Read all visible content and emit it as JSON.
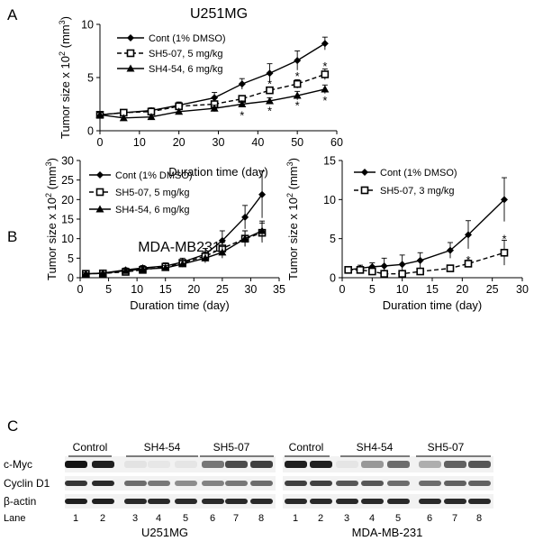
{
  "panels": {
    "a": "A",
    "b": "B",
    "c": "C"
  },
  "chart_data": [
    {
      "id": "chartA",
      "type": "line",
      "title": "U251MG",
      "xlabel": "Duration time (day)",
      "ylabel": "Tumor size x 10² (mm³)",
      "xlim": [
        0,
        60
      ],
      "ylim": [
        0,
        10
      ],
      "xticks": [
        0,
        10,
        20,
        30,
        40,
        50,
        60
      ],
      "yticks": [
        0,
        5,
        10
      ],
      "legend_position": "top-left",
      "series": [
        {
          "name": "Cont (1% DMSO)",
          "marker": "diamond",
          "dash": false,
          "x": [
            0,
            6,
            13,
            20,
            29,
            36,
            43,
            50,
            57
          ],
          "y": [
            1.5,
            1.7,
            1.9,
            2.4,
            3.1,
            4.4,
            5.4,
            6.6,
            8.2
          ],
          "err": [
            0.2,
            0.2,
            0.25,
            0.3,
            0.5,
            0.5,
            0.9,
            0.9,
            0.6
          ]
        },
        {
          "name": "SH5-07, 5 mg/kg",
          "marker": "square-open",
          "dash": true,
          "x": [
            0,
            6,
            13,
            20,
            29,
            36,
            43,
            50,
            57
          ],
          "y": [
            1.5,
            1.7,
            1.8,
            2.3,
            2.5,
            3.0,
            3.8,
            4.4,
            5.3
          ],
          "err": [
            0.2,
            0.2,
            0.2,
            0.25,
            0.3,
            0.3,
            0.3,
            0.4,
            0.5
          ]
        },
        {
          "name": "SH4-54, 6 mg/kg",
          "marker": "triangle",
          "dash": false,
          "x": [
            0,
            6,
            13,
            20,
            29,
            36,
            43,
            50,
            57
          ],
          "y": [
            1.5,
            1.2,
            1.3,
            1.8,
            2.1,
            2.5,
            2.8,
            3.3,
            3.9
          ],
          "err": [
            0.2,
            0.2,
            0.2,
            0.2,
            0.3,
            0.3,
            0.3,
            0.4,
            0.4
          ]
        }
      ],
      "annotations": [
        {
          "text": "*",
          "x": 36,
          "y": 1.5
        },
        {
          "text": "*",
          "x": 43,
          "y": 1.9
        },
        {
          "text": "*",
          "x": 43,
          "y": 4.45
        },
        {
          "text": "*",
          "x": 50,
          "y": 2.4
        },
        {
          "text": "*",
          "x": 50,
          "y": 5.15
        },
        {
          "text": "*",
          "x": 57,
          "y": 2.9
        },
        {
          "text": "*",
          "x": 57,
          "y": 6.1
        }
      ]
    },
    {
      "id": "chartB1",
      "type": "line",
      "title": "MDA-MB231",
      "xlabel": "Duration time (day)",
      "ylabel": "Tumor size x 10² (mm³)",
      "xlim": [
        0,
        35
      ],
      "ylim": [
        0,
        30
      ],
      "xticks": [
        0,
        5,
        10,
        15,
        20,
        25,
        30,
        35
      ],
      "yticks": [
        0,
        5,
        10,
        15,
        20,
        25,
        30
      ],
      "legend_position": "top-left",
      "series": [
        {
          "name": "Cont (1% DMSO)",
          "marker": "diamond",
          "dash": false,
          "x": [
            1,
            4,
            8,
            11,
            15,
            18,
            22,
            25,
            29,
            32
          ],
          "y": [
            1.0,
            1.2,
            2.0,
            2.5,
            3.0,
            4.0,
            6.0,
            9.5,
            15.5,
            21.3
          ],
          "err": [
            0.3,
            0.4,
            0.5,
            0.6,
            0.8,
            1.0,
            1.5,
            2.5,
            3.0,
            6.0
          ]
        },
        {
          "name": "SH5-07, 5 mg/kg",
          "marker": "square-open",
          "dash": true,
          "x": [
            1,
            4,
            8,
            11,
            15,
            18,
            22,
            25,
            29,
            32
          ],
          "y": [
            1.0,
            1.1,
            1.5,
            2.0,
            2.8,
            3.8,
            5.5,
            7.5,
            10.0,
            11.5
          ],
          "err": [
            0.3,
            0.3,
            0.4,
            0.5,
            0.6,
            0.8,
            1.0,
            1.5,
            2.0,
            2.5
          ]
        },
        {
          "name": "SH4-54, 6 mg/kg",
          "marker": "triangle",
          "dash": false,
          "x": [
            1,
            4,
            8,
            11,
            15,
            18,
            22,
            25,
            29,
            32
          ],
          "y": [
            1.0,
            1.1,
            1.8,
            2.2,
            2.5,
            3.5,
            5.0,
            6.5,
            10.0,
            12.0
          ],
          "err": [
            0.3,
            0.3,
            0.4,
            0.5,
            0.6,
            0.8,
            1.2,
            1.5,
            2.0,
            2.5
          ]
        }
      ]
    },
    {
      "id": "chartB2",
      "type": "line",
      "title": "",
      "xlabel": "Duration time (day)",
      "ylabel": "Tumor size x 10² (mm³)",
      "xlim": [
        0,
        30
      ],
      "ylim": [
        0,
        15
      ],
      "xticks": [
        0,
        5,
        10,
        15,
        20,
        25,
        30
      ],
      "yticks": [
        0,
        5,
        10,
        15
      ],
      "legend_position": "top-left",
      "series": [
        {
          "name": "Cont  (1% DMSO)",
          "marker": "diamond",
          "dash": false,
          "x": [
            1,
            3,
            5,
            7,
            10,
            13,
            18,
            21,
            27
          ],
          "y": [
            1.0,
            1.2,
            1.4,
            1.5,
            1.7,
            2.2,
            3.5,
            5.5,
            10.0
          ],
          "err": [
            0.3,
            0.4,
            0.5,
            1.0,
            1.2,
            1.0,
            1.0,
            1.8,
            2.8
          ]
        },
        {
          "name": "SH5-07, 3 mg/kg",
          "marker": "square-open",
          "dash": true,
          "x": [
            1,
            3,
            5,
            7,
            10,
            13,
            18,
            21,
            27
          ],
          "y": [
            1.0,
            1.0,
            0.8,
            0.5,
            0.5,
            0.8,
            1.2,
            1.8,
            3.2
          ],
          "err": [
            0.3,
            0.3,
            0.3,
            0.3,
            0.3,
            0.3,
            0.4,
            0.4,
            1.6
          ]
        }
      ],
      "annotations": [
        {
          "text": "*",
          "x": 21,
          "y": 2.3
        },
        {
          "text": "*",
          "x": 27,
          "y": 5.0
        }
      ]
    }
  ],
  "blot": {
    "row_labels": [
      "c-Myc",
      "Cyclin D1",
      "β-actin"
    ],
    "lane_label": "Lane",
    "left": {
      "cell_line": "U251MG",
      "groups": [
        "Control",
        "SH4-54",
        "SH5-07"
      ],
      "lanes": [
        "1",
        "2",
        "3",
        "4",
        "5",
        "6",
        "7",
        "8"
      ],
      "cmyc": [
        1.0,
        0.95,
        0.06,
        0.04,
        0.05,
        0.55,
        0.75,
        0.8
      ],
      "cyclin": [
        0.85,
        0.9,
        0.6,
        0.55,
        0.45,
        0.5,
        0.55,
        0.6
      ],
      "actin": [
        0.95,
        0.95,
        0.9,
        0.9,
        0.9,
        0.9,
        0.9,
        0.9
      ]
    },
    "right": {
      "cell_line": "MDA-MB-231",
      "groups": [
        "Control",
        "SH4-54",
        "SH5-07"
      ],
      "lanes": [
        "1",
        "2",
        "3",
        "4",
        "5",
        "6",
        "7",
        "8"
      ],
      "cmyc": [
        0.95,
        0.95,
        0.05,
        0.4,
        0.6,
        0.3,
        0.65,
        0.7
      ],
      "cyclin": [
        0.8,
        0.8,
        0.7,
        0.7,
        0.6,
        0.6,
        0.65,
        0.65
      ],
      "actin": [
        0.9,
        0.9,
        0.9,
        0.9,
        0.9,
        0.9,
        0.9,
        0.9
      ]
    }
  }
}
